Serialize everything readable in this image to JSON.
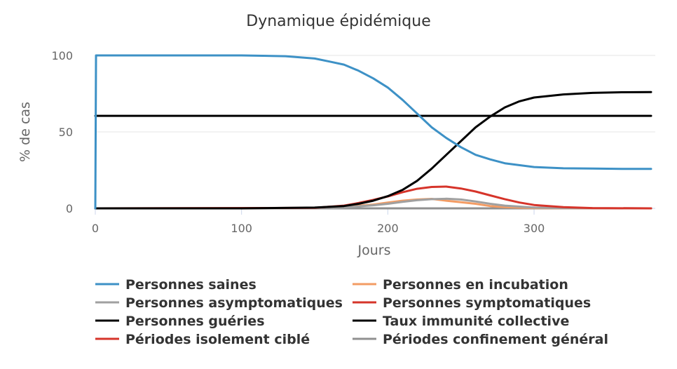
{
  "chart_data": {
    "type": "line",
    "title": "Dynamique épidémique",
    "xlabel": "Jours",
    "ylabel": "% de cas",
    "xlim": [
      0,
      380
    ],
    "ylim": [
      0,
      100
    ],
    "xticks": [
      0,
      100,
      200,
      300
    ],
    "yticks": [
      0,
      50,
      100
    ],
    "grid": "horizontal",
    "legend_position": "bottom",
    "series": [
      {
        "name": "Personnes saines",
        "color": "#3d91c6",
        "x": [
          0,
          0.5,
          50,
          100,
          130,
          150,
          160,
          170,
          180,
          190,
          200,
          210,
          220,
          230,
          240,
          250,
          260,
          270,
          280,
          300,
          320,
          340,
          360,
          380
        ],
        "y": [
          0,
          100,
          100,
          100,
          99.5,
          98,
          96,
          94,
          90,
          85,
          79,
          71,
          62,
          53,
          46,
          40,
          35,
          32,
          29.5,
          27,
          26.2,
          26,
          25.8,
          25.8
        ]
      },
      {
        "name": "Personnes en incubation",
        "color": "#f39c64",
        "x": [
          0,
          150,
          170,
          190,
          200,
          210,
          220,
          230,
          240,
          250,
          260,
          270,
          280,
          300,
          320,
          380
        ],
        "y": [
          0,
          0.2,
          1.0,
          2.5,
          3.8,
          5.0,
          5.8,
          6.2,
          5.0,
          4.0,
          3.0,
          1.5,
          0.8,
          0.2,
          0.05,
          0
        ]
      },
      {
        "name": "Personnes asymptomatiques",
        "color": "#a0a0a0",
        "x": [
          0,
          150,
          170,
          190,
          200,
          210,
          220,
          230,
          240,
          250,
          260,
          270,
          280,
          300,
          320,
          380
        ],
        "y": [
          0,
          0.1,
          0.6,
          2.0,
          3.0,
          4.2,
          5.3,
          6.0,
          6.3,
          5.8,
          4.5,
          3.0,
          1.8,
          0.5,
          0.1,
          0
        ]
      },
      {
        "name": "Personnes symptomatiques",
        "color": "#d6342a",
        "x": [
          0,
          150,
          170,
          180,
          190,
          200,
          210,
          220,
          230,
          240,
          250,
          260,
          270,
          280,
          290,
          300,
          320,
          340,
          380
        ],
        "y": [
          0,
          0.3,
          1.8,
          3.5,
          5.5,
          7.8,
          10.5,
          12.8,
          14.0,
          14.2,
          13.0,
          11.0,
          8.5,
          6.0,
          3.8,
          2.2,
          0.8,
          0.2,
          0
        ]
      },
      {
        "name": "Personnes guéries",
        "color": "#000000",
        "x": [
          0,
          100,
          150,
          170,
          180,
          190,
          200,
          210,
          220,
          230,
          240,
          250,
          260,
          270,
          280,
          290,
          300,
          320,
          340,
          360,
          380
        ],
        "y": [
          0,
          0,
          0.5,
          1.5,
          3,
          5,
          8,
          12,
          18,
          26,
          35,
          44,
          53,
          60,
          66,
          70,
          72.5,
          74.5,
          75.5,
          75.9,
          76
        ]
      },
      {
        "name": "Taux immunité collective",
        "color": "#000000",
        "x": [
          0,
          380
        ],
        "y": [
          60.5,
          60.5
        ]
      },
      {
        "name": "Périodes isolement ciblé",
        "color": "#d6342a",
        "x": [
          0,
          380
        ],
        "y": [
          0,
          0
        ]
      },
      {
        "name": "Périodes confinement général",
        "color": "#909090",
        "x": [
          0,
          380
        ],
        "y": [
          0,
          0
        ]
      }
    ]
  }
}
